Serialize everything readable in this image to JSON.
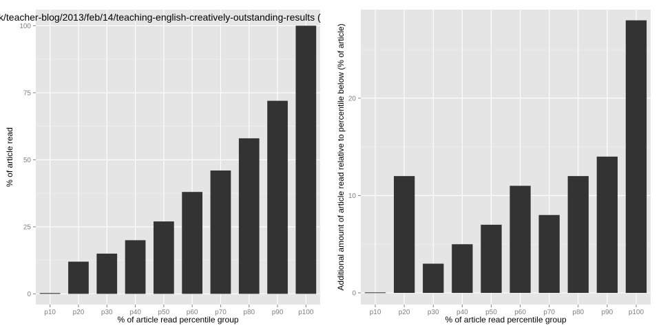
{
  "title": "k/teacher-blog/2013/feb/14/teaching-english-creatively-outstanding-results (",
  "chart_data": [
    {
      "type": "bar",
      "categories": [
        "p10",
        "p20",
        "p30",
        "p40",
        "p50",
        "p60",
        "p70",
        "p80",
        "p90",
        "p100"
      ],
      "values": [
        0.3,
        12,
        15,
        20,
        27,
        38,
        46,
        58,
        72,
        100
      ],
      "xlabel": "% of article read percentile group",
      "ylabel": "% of article read",
      "ylim": [
        -4,
        106
      ],
      "yticks": [
        0,
        25,
        50,
        75,
        100
      ],
      "grid": true
    },
    {
      "type": "bar",
      "categories": [
        "p10",
        "p20",
        "p30",
        "p40",
        "p50",
        "p60",
        "p70",
        "p80",
        "p90",
        "p100"
      ],
      "values": [
        0.05,
        12,
        3,
        5,
        7,
        11,
        8,
        12,
        14,
        28
      ],
      "xlabel": "% of article read percentile group",
      "ylabel": "Additional amount of article read relative to percentile below (% of article)",
      "ylim": [
        -1.2,
        29.1
      ],
      "yticks": [
        0,
        10,
        20
      ],
      "grid": true
    }
  ]
}
